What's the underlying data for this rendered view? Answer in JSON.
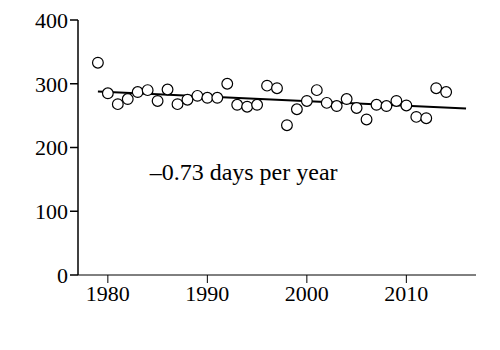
{
  "chart_data": {
    "type": "scatter",
    "x": [
      1979,
      1980,
      1981,
      1982,
      1983,
      1984,
      1985,
      1986,
      1987,
      1988,
      1989,
      1990,
      1991,
      1992,
      1993,
      1994,
      1995,
      1996,
      1997,
      1998,
      1999,
      2000,
      2001,
      2002,
      2003,
      2004,
      2005,
      2006,
      2007,
      2008,
      2009,
      2010,
      2011,
      2012,
      2013,
      2014
    ],
    "values": [
      333,
      285,
      268,
      276,
      287,
      290,
      273,
      291,
      268,
      275,
      281,
      278,
      278,
      300,
      267,
      264,
      267,
      297,
      293,
      235,
      260,
      273,
      290,
      270,
      265,
      276,
      262,
      244,
      267,
      265,
      273,
      266,
      248,
      246,
      293,
      287
    ],
    "color": "#000000",
    "marker": "open circle",
    "xlim": [
      1977,
      2017
    ],
    "xticks": [
      1980,
      1990,
      2000,
      2010
    ],
    "ylim": [
      0,
      400
    ],
    "yticks": [
      0,
      100,
      200,
      300,
      400
    ],
    "trend": {
      "x": [
        1979,
        2016
      ],
      "values": [
        288,
        261
      ]
    },
    "annotation": "–0.73 days per year"
  }
}
